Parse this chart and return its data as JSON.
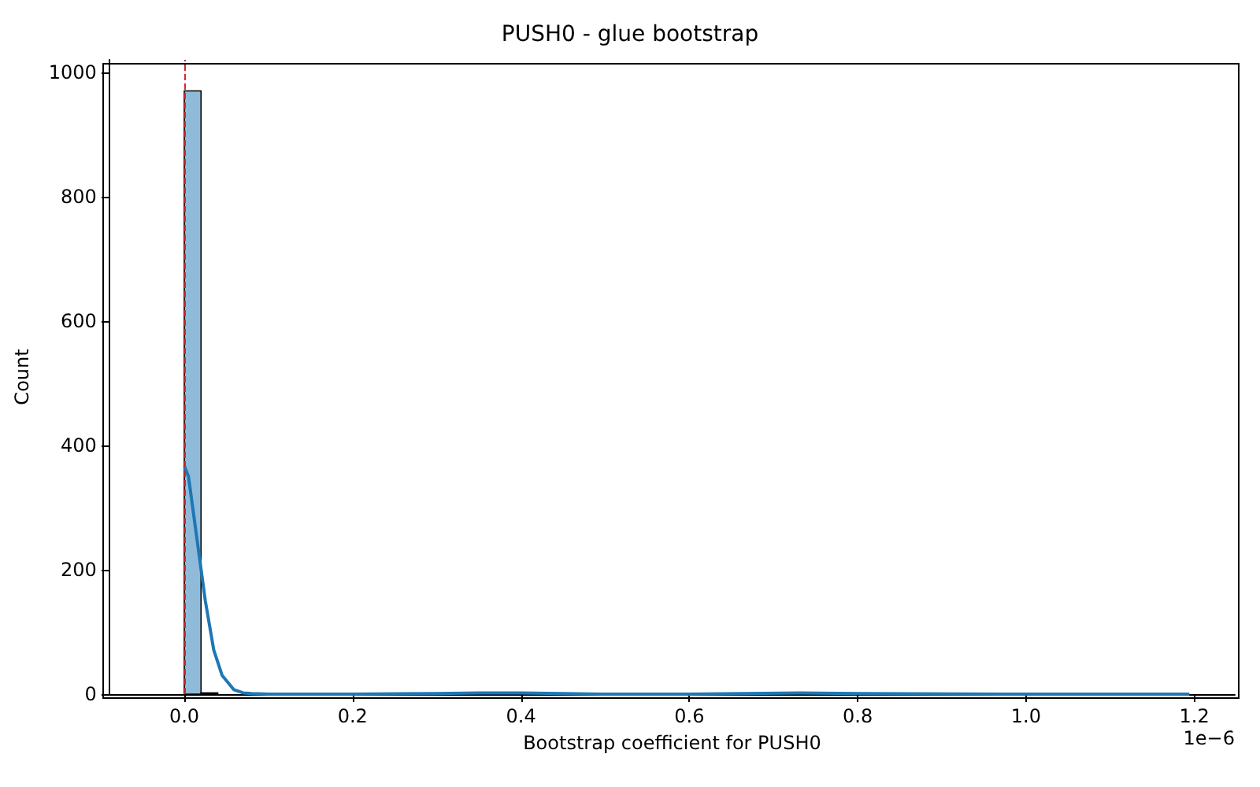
{
  "chart_data": {
    "type": "histogram",
    "title": "PUSH0 - glue bootstrap",
    "xlabel": "Bootstrap coefficient for PUSH0",
    "ylabel": "Count",
    "annotations": [
      "1e−6"
    ],
    "bins": [
      0,
      0.0199,
      0.0398,
      0.0597,
      0.0796,
      0.0995,
      0.1194,
      0.1393,
      0.1592,
      0.1791,
      0.199,
      0.2189,
      0.2388,
      0.2587,
      0.2786,
      0.2985,
      0.3184,
      0.3383,
      0.3582,
      0.3781,
      0.398,
      0.4179,
      0.4378,
      0.4577,
      0.4776,
      0.4975,
      0.5174,
      0.5373,
      0.5572,
      0.5771,
      0.597,
      0.6169,
      0.6368,
      0.6567,
      0.6766,
      0.6965,
      0.7164,
      0.7363,
      0.7562,
      0.7761,
      0.796,
      0.8159,
      0.8358,
      0.8557,
      0.8756,
      0.8955,
      0.9154,
      0.9353,
      0.9552,
      0.9751,
      0.995,
      1.0149,
      1.0348,
      1.0547,
      1.0746,
      1.0945,
      1.1144,
      1.1343,
      1.1542,
      1.1741,
      1.194
    ],
    "values": [
      970,
      2,
      null,
      null,
      0,
      0,
      0,
      0,
      0,
      0,
      0,
      0,
      0,
      0,
      0,
      0,
      0,
      1,
      1,
      0,
      0,
      0,
      0,
      0,
      0,
      0,
      0,
      0,
      0,
      0,
      0,
      0,
      0,
      0,
      0,
      0,
      1,
      1,
      0,
      0,
      0,
      0,
      0,
      0,
      0,
      0,
      0,
      0,
      0,
      0,
      0,
      0,
      0,
      0,
      0,
      0,
      0,
      0,
      0,
      null
    ],
    "color": "#8fbbd9",
    "series": [
      {
        "type": "line",
        "color": "#1f77b4",
        "x": [
          0,
          0.005,
          0.01,
          0.017,
          0.025,
          0.035,
          0.045,
          0.059,
          0.07,
          0.08,
          0.1,
          0.2,
          0.3,
          0.35,
          0.4,
          0.5,
          0.6,
          0.73,
          0.8,
          1.0,
          1.194
        ],
        "values": [
          367,
          350,
          300,
          230,
          150,
          71,
          30,
          7,
          2,
          1,
          0,
          0,
          1,
          2,
          2,
          0,
          0,
          2,
          1,
          0,
          0
        ]
      }
    ],
    "xlim": [
      -0.089,
      1.248
    ],
    "xticks": [
      {
        "value": 0,
        "label": "0.0"
      },
      0.2,
      0.4,
      0.6,
      0.8,
      {
        "value": 1,
        "label": "1.0"
      },
      1.2
    ],
    "ylim": [
      0,
      1020
    ],
    "yticks": [
      0,
      200,
      400,
      600,
      800,
      1000
    ],
    "ref_lines": [
      {
        "axis": "x",
        "value": 0,
        "color": "#d62728",
        "line_style": "dashed"
      }
    ],
    "grid": false
  }
}
